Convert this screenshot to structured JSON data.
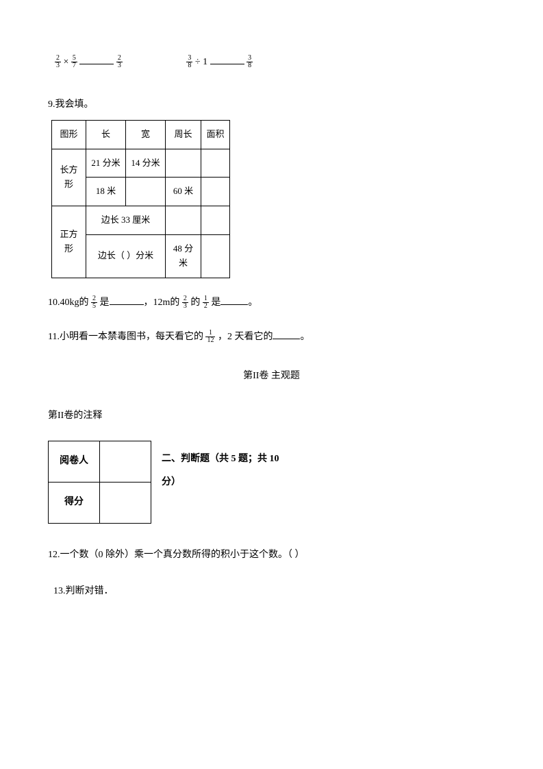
{
  "eq1": {
    "f1_num": "2",
    "f1_den": "3",
    "op": "×",
    "f2_num": "5",
    "f2_den": "7",
    "f3_num": "2",
    "f3_den": "3"
  },
  "eq2": {
    "f1_num": "3",
    "f1_den": "8",
    "op": "÷ 1",
    "f3_num": "3",
    "f3_den": "8"
  },
  "q9": {
    "title": "9.我会填。",
    "headers": [
      "图形",
      "长",
      "宽",
      "周长",
      "面积"
    ],
    "rows": [
      [
        "长方形",
        "21 分米",
        "14 分米",
        "",
        ""
      ],
      [
        "",
        "18 米",
        "",
        "60 米",
        ""
      ],
      [
        "正方形",
        "边长 33 厘米",
        "",
        ""
      ],
      [
        "",
        "边长（  ）分米",
        "48 分米",
        ""
      ]
    ],
    "col_widths": [
      "50px",
      "58px",
      "58px",
      "52px",
      "42px"
    ]
  },
  "q10": {
    "prefix": "10.40kg的 ",
    "f1_num": "2",
    "f1_den": "5",
    "mid1": " 是",
    "mid2": "，12m的 ",
    "f2_num": "2",
    "f2_den": "3",
    "mid3": " 的 ",
    "f3_num": "1",
    "f3_den": "2",
    "mid4": " 是",
    "suffix": "。"
  },
  "q11": {
    "prefix": "11.小明看一本禁毒图书，每天看它的 ",
    "f1_num": "1",
    "f1_den": "12",
    "mid": " ，2 天看它的",
    "suffix": "。"
  },
  "part2_title": "第II卷  主观题",
  "part2_note": "第II卷的注释",
  "score_labels": {
    "reviewer": "阅卷人",
    "score": "得分"
  },
  "section2_heading": "二、判断题（共 5 题；共 10分）",
  "q12": "12.一个数（0 除外）乘一个真分数所得的积小于这个数。（     ）",
  "q13": "13.判断对错．",
  "colors": {
    "text": "#000000",
    "bg": "#ffffff",
    "border": "#000000"
  }
}
